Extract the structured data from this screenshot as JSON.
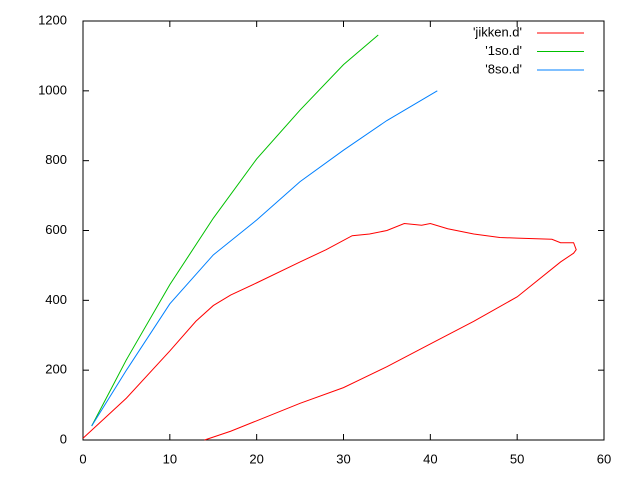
{
  "chart_data": {
    "type": "line",
    "xlim": [
      0,
      60
    ],
    "xticks": [
      0,
      10,
      20,
      30,
      40,
      50,
      60
    ],
    "ylim": [
      0,
      1200
    ],
    "yticks": [
      0,
      200,
      400,
      600,
      800,
      1000,
      1200
    ],
    "grid": false,
    "legend": "top-right",
    "series": [
      {
        "name": "'jikken.d'",
        "color": "#ff0000",
        "x": [
          0,
          5,
          10,
          13,
          15,
          17,
          20,
          25,
          28,
          31,
          33,
          35,
          37,
          39,
          40,
          42,
          45,
          48,
          50,
          54,
          55,
          56.5,
          56.8,
          56.5,
          55,
          50,
          45,
          40,
          35,
          30,
          25,
          20,
          17,
          14
        ],
        "values": [
          5,
          120,
          255,
          340,
          385,
          415,
          450,
          510,
          545,
          585,
          590,
          600,
          620,
          615,
          620,
          605,
          590,
          580,
          578,
          575,
          565,
          565,
          545,
          535,
          510,
          410,
          340,
          275,
          210,
          150,
          105,
          55,
          25,
          0
        ]
      },
      {
        "name": "'1so.d'",
        "color": "#00c000",
        "x": [
          1,
          5,
          10,
          15,
          20,
          25,
          30,
          34
        ],
        "values": [
          40,
          230,
          445,
          635,
          805,
          945,
          1075,
          1160
        ]
      },
      {
        "name": "'8so.d'",
        "color": "#0080ff",
        "x": [
          1,
          5,
          10,
          15,
          20,
          25,
          30,
          35,
          40.8
        ],
        "values": [
          40,
          200,
          390,
          530,
          630,
          740,
          830,
          915,
          1000
        ]
      }
    ]
  }
}
